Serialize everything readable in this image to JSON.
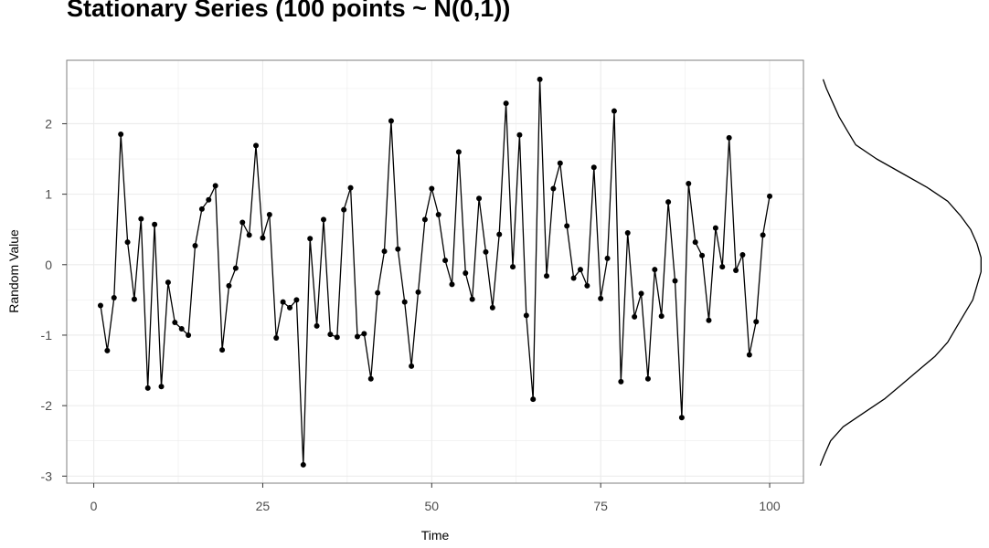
{
  "chart_data": {
    "type": "line",
    "title": "Stationary Series (100 points ~ N(0,1))",
    "xlabel": "Time",
    "ylabel": "Random Value",
    "xlim": [
      -4,
      105
    ],
    "ylim": [
      -3.1,
      2.9
    ],
    "x_ticks": [
      0,
      25,
      50,
      75,
      100
    ],
    "y_ticks": [
      -3,
      -2,
      -1,
      0,
      1,
      2
    ],
    "grid": true,
    "markers": true,
    "line_color": "#000000",
    "panel_background": "#ffffff",
    "grid_color": "#ebebeb",
    "x": [
      1,
      2,
      3,
      4,
      5,
      6,
      7,
      8,
      9,
      10,
      11,
      12,
      13,
      14,
      15,
      16,
      17,
      18,
      19,
      20,
      21,
      22,
      23,
      24,
      25,
      26,
      27,
      28,
      29,
      30,
      31,
      32,
      33,
      34,
      35,
      36,
      37,
      38,
      39,
      40,
      41,
      42,
      43,
      44,
      45,
      46,
      47,
      48,
      49,
      50,
      51,
      52,
      53,
      54,
      55,
      56,
      57,
      58,
      59,
      60,
      61,
      62,
      63,
      64,
      65,
      66,
      67,
      68,
      69,
      70,
      71,
      72,
      73,
      74,
      75,
      76,
      77,
      78,
      79,
      80,
      81,
      82,
      83,
      84,
      85,
      86,
      87,
      88,
      89,
      90,
      91,
      92,
      93,
      94,
      95,
      96,
      97,
      98,
      99,
      100
    ],
    "y": [
      -0.58,
      -1.22,
      -0.47,
      1.85,
      0.32,
      -0.49,
      0.65,
      -1.75,
      0.57,
      -1.73,
      -0.25,
      -0.82,
      -0.91,
      -1.0,
      0.27,
      0.79,
      0.92,
      1.12,
      -1.21,
      -0.3,
      -0.05,
      0.6,
      0.42,
      1.69,
      0.38,
      0.71,
      -1.04,
      -0.53,
      -0.61,
      -0.5,
      -2.84,
      0.37,
      -0.87,
      0.64,
      -0.99,
      -1.03,
      0.78,
      1.09,
      -1.02,
      -0.98,
      -1.62,
      -0.4,
      0.19,
      2.04,
      0.22,
      -0.53,
      -1.44,
      -0.39,
      0.64,
      1.08,
      0.71,
      0.06,
      -0.28,
      1.6,
      -0.12,
      -0.49,
      0.94,
      0.18,
      -0.61,
      0.43,
      2.29,
      -0.03,
      1.84,
      -0.72,
      -1.91,
      2.63,
      -0.16,
      1.08,
      1.44,
      0.55,
      -0.19,
      -0.07,
      -0.3,
      1.38,
      -0.48,
      0.09,
      2.18,
      -1.66,
      0.45,
      -0.74,
      -0.41,
      -1.62,
      -0.07,
      -0.73,
      0.89,
      -0.23,
      -2.17,
      1.15,
      0.32,
      0.13,
      -0.79,
      0.52,
      -0.03,
      1.8,
      -0.08,
      0.14,
      -1.28,
      -0.81,
      0.42,
      0.97
    ],
    "marginal_density": {
      "type": "density",
      "orientation": "vertical",
      "y": [
        -2.85,
        -2.7,
        -2.5,
        -2.3,
        -2.1,
        -1.9,
        -1.7,
        -1.5,
        -1.3,
        -1.1,
        -0.9,
        -0.7,
        -0.5,
        -0.3,
        -0.1,
        0.1,
        0.3,
        0.5,
        0.7,
        0.9,
        1.1,
        1.3,
        1.5,
        1.7,
        1.9,
        2.1,
        2.3,
        2.5,
        2.63
      ],
      "density": [
        0.005,
        0.015,
        0.03,
        0.06,
        0.11,
        0.16,
        0.2,
        0.24,
        0.28,
        0.31,
        0.33,
        0.35,
        0.37,
        0.38,
        0.39,
        0.39,
        0.38,
        0.365,
        0.34,
        0.31,
        0.26,
        0.2,
        0.14,
        0.09,
        0.07,
        0.05,
        0.035,
        0.02,
        0.012
      ]
    }
  }
}
